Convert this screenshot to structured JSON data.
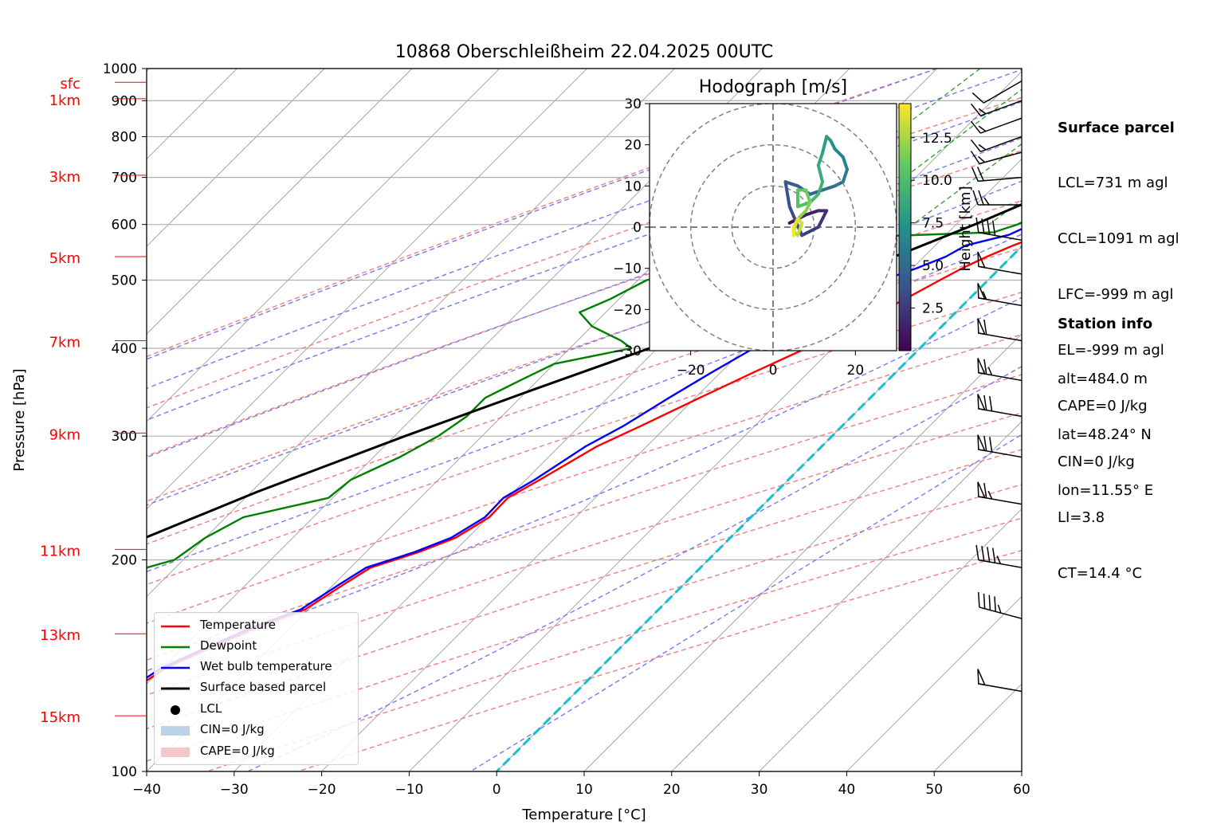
{
  "chart_data": {
    "type": "skew-t",
    "title": "10868 Oberschleißheim 22.04.2025 00UTC",
    "xlabel": "Temperature [°C]",
    "ylabel": "Pressure [hPa]",
    "xlim": [
      -40,
      60
    ],
    "ylim": [
      1000,
      100
    ],
    "x_ticks": [
      "−40",
      "−30",
      "−20",
      "−10",
      "0",
      "10",
      "20",
      "30",
      "40",
      "50",
      "60"
    ],
    "y_ticks": [
      "100",
      "200",
      "300",
      "400",
      "500",
      "600",
      "700",
      "800",
      "900",
      "1000"
    ],
    "height_labels": [
      {
        "label": "15km",
        "p": 120
      },
      {
        "label": "13km",
        "p": 157
      },
      {
        "label": "11km",
        "p": 207
      },
      {
        "label": "9km",
        "p": 303
      },
      {
        "label": "7km",
        "p": 410
      },
      {
        "label": "5km",
        "p": 540
      },
      {
        "label": "3km",
        "p": 705
      },
      {
        "label": "1km",
        "p": 906
      },
      {
        "label": "sfc",
        "p": 956
      }
    ],
    "series": [
      {
        "name": "Temperature",
        "color": "#ff0000",
        "points": [
          [
            956,
            12.9
          ],
          [
            940,
            12.0
          ],
          [
            920,
            10.8
          ],
          [
            900,
            9.5
          ],
          [
            880,
            8.3
          ],
          [
            860,
            7.7
          ],
          [
            840,
            7.4
          ],
          [
            800,
            6.5
          ],
          [
            760,
            5.7
          ],
          [
            720,
            4.8
          ],
          [
            680,
            3.3
          ],
          [
            640,
            1.7
          ],
          [
            600,
            -0.1
          ],
          [
            580,
            0.9
          ],
          [
            560,
            -1.1
          ],
          [
            540,
            -2.8
          ],
          [
            520,
            -4.3
          ],
          [
            500,
            -5.5
          ],
          [
            470,
            -7.3
          ],
          [
            440,
            -9.5
          ],
          [
            400,
            -13.0
          ],
          [
            370,
            -16.2
          ],
          [
            340,
            -19.5
          ],
          [
            310,
            -23.0
          ],
          [
            290,
            -25.7
          ],
          [
            260,
            -28.4
          ],
          [
            245,
            -30.0
          ],
          [
            230,
            -29.9
          ],
          [
            215,
            -31.4
          ],
          [
            205,
            -34.0
          ],
          [
            195,
            -37.7
          ],
          [
            185,
            -38.8
          ],
          [
            170,
            -40.4
          ],
          [
            160,
            -44.0
          ],
          [
            150,
            -46.8
          ],
          [
            140,
            -49.7
          ],
          [
            130,
            -51.0
          ],
          [
            120,
            -52.4
          ],
          [
            117,
            -51.9
          ]
        ]
      },
      {
        "name": "Dewpoint",
        "color": "#008000",
        "points": [
          [
            956,
            7.3
          ],
          [
            940,
            6.3
          ],
          [
            920,
            5.7
          ],
          [
            900,
            5.4
          ],
          [
            880,
            5.8
          ],
          [
            860,
            5.1
          ],
          [
            840,
            4.9
          ],
          [
            800,
            4.2
          ],
          [
            760,
            3.6
          ],
          [
            720,
            2.9
          ],
          [
            680,
            1.4
          ],
          [
            640,
            -0.5
          ],
          [
            600,
            -3.0
          ],
          [
            585,
            -4.8
          ],
          [
            575,
            -21.0
          ],
          [
            560,
            -22.0
          ],
          [
            540,
            -25.0
          ],
          [
            520,
            -34.0
          ],
          [
            500,
            -39.0
          ],
          [
            470,
            -41.0
          ],
          [
            450,
            -43.0
          ],
          [
            430,
            -40.0
          ],
          [
            410,
            -35.0
          ],
          [
            400,
            -33.0
          ],
          [
            380,
            -40.0
          ],
          [
            360,
            -42.0
          ],
          [
            340,
            -44.0
          ],
          [
            320,
            -44.0
          ],
          [
            300,
            -45.0
          ],
          [
            280,
            -47.0
          ],
          [
            260,
            -50.0
          ],
          [
            245,
            -50.5
          ],
          [
            230,
            -58.0
          ],
          [
            215,
            -60.0
          ],
          [
            200,
            -61.0
          ],
          [
            185,
            -68.0
          ],
          [
            170,
            -70.0
          ],
          [
            160,
            -71.5
          ],
          [
            150,
            -72.5
          ],
          [
            140,
            -76.5
          ],
          [
            130,
            -78.5
          ],
          [
            120,
            -79.0
          ]
        ]
      },
      {
        "name": "Wet bulb temperature",
        "color": "#0000ff",
        "points": [
          [
            956,
            9.4
          ],
          [
            940,
            8.6
          ],
          [
            920,
            7.9
          ],
          [
            900,
            7.1
          ],
          [
            880,
            6.6
          ],
          [
            860,
            6.1
          ],
          [
            840,
            5.8
          ],
          [
            800,
            5.3
          ],
          [
            760,
            4.9
          ],
          [
            720,
            4.1
          ],
          [
            680,
            2.6
          ],
          [
            640,
            0.7
          ],
          [
            600,
            -1.4
          ],
          [
            580,
            -2.8
          ],
          [
            560,
            -6.5
          ],
          [
            540,
            -7.5
          ],
          [
            520,
            -9.5
          ],
          [
            500,
            -12.0
          ],
          [
            470,
            -14.0
          ],
          [
            440,
            -15.5
          ],
          [
            400,
            -19.0
          ],
          [
            370,
            -21.0
          ],
          [
            340,
            -23.0
          ],
          [
            310,
            -25.0
          ],
          [
            290,
            -27.0
          ],
          [
            260,
            -29.0
          ],
          [
            245,
            -30.5
          ],
          [
            230,
            -30.4
          ],
          [
            215,
            -31.9
          ],
          [
            205,
            -34.5
          ],
          [
            195,
            -38.2
          ],
          [
            185,
            -39.3
          ],
          [
            170,
            -40.9
          ],
          [
            160,
            -44.5
          ],
          [
            150,
            -47.3
          ],
          [
            140,
            -50.2
          ],
          [
            130,
            -51.5
          ],
          [
            120,
            -52.9
          ],
          [
            117,
            -52.4
          ]
        ]
      },
      {
        "name": "Surface based parcel",
        "color": "#000000",
        "points": [
          [
            956,
            13.0
          ],
          [
            930,
            10.8
          ],
          [
            910,
            9.0
          ],
          [
            880,
            7.9
          ],
          [
            840,
            6.3
          ],
          [
            800,
            4.4
          ],
          [
            750,
            1.9
          ],
          [
            700,
            -0.9
          ],
          [
            650,
            -4.1
          ],
          [
            600,
            -7.9
          ],
          [
            550,
            -12.4
          ],
          [
            500,
            -17.6
          ],
          [
            450,
            -23.7
          ],
          [
            400,
            -30.9
          ],
          [
            350,
            -39.3
          ],
          [
            300,
            -48.8
          ],
          [
            250,
            -59.3
          ],
          [
            200,
            -70.5
          ],
          [
            175,
            -76.5
          ],
          [
            150,
            -82.6
          ],
          [
            135,
            -86.3
          ]
        ]
      }
    ],
    "lcl": {
      "p": 880,
      "t": 8.4
    },
    "hodograph": {
      "title": "Hodograph [m/s]",
      "xlim": [
        -30,
        30
      ],
      "ylim": [
        -30,
        30
      ],
      "x_ticks": [
        "−20",
        "0",
        "20"
      ],
      "y_ticks": [
        "30",
        "20",
        "10",
        "0",
        "−10",
        "−20",
        "−30"
      ],
      "colorbar_label": "Height [km]",
      "colorbar_ticks": [
        "2.5",
        "5.0",
        "7.5",
        "10.0",
        "12.5"
      ],
      "colormap": [
        "#440154",
        "#3b528b",
        "#21918c",
        "#5ec962",
        "#fde725"
      ],
      "points": [
        [
          4,
          1,
          0.3
        ],
        [
          8,
          3,
          0.8
        ],
        [
          11,
          4,
          1.3
        ],
        [
          13,
          4,
          1.8
        ],
        [
          11,
          0,
          2.3
        ],
        [
          7,
          -2,
          2.7
        ],
        [
          4,
          5,
          3.2
        ],
        [
          3,
          11,
          3.6
        ],
        [
          6,
          10,
          4.0
        ],
        [
          9,
          8,
          4.4
        ],
        [
          12,
          9,
          4.8
        ],
        [
          15,
          10,
          5.2
        ],
        [
          17,
          11,
          5.6
        ],
        [
          18,
          14,
          6.0
        ],
        [
          17,
          17,
          6.4
        ],
        [
          15,
          19,
          6.8
        ],
        [
          14,
          21,
          7.2
        ],
        [
          13,
          22,
          7.6
        ],
        [
          12,
          18,
          8.0
        ],
        [
          11,
          15,
          8.4
        ],
        [
          12,
          11,
          8.8
        ],
        [
          11,
          8,
          9.2
        ],
        [
          9,
          6,
          9.6
        ],
        [
          6,
          5,
          10.0
        ],
        [
          6,
          9,
          10.4
        ],
        [
          8,
          9,
          10.8
        ],
        [
          9,
          6,
          11.2
        ],
        [
          8,
          4,
          11.6
        ],
        [
          6,
          2,
          12.0
        ],
        [
          5,
          -1,
          12.4
        ],
        [
          6,
          -2,
          12.8
        ],
        [
          7,
          1,
          13.2
        ],
        [
          6,
          2,
          13.6
        ],
        [
          5,
          0,
          14.0
        ],
        [
          5,
          -2,
          14.4
        ]
      ]
    },
    "wind_barbs": [
      {
        "p": 130,
        "spd": 50,
        "dir": 280
      },
      {
        "p": 165,
        "spd": 45,
        "dir": 285
      },
      {
        "p": 195,
        "spd": 45,
        "dir": 280
      },
      {
        "p": 240,
        "spd": 65,
        "dir": 280
      },
      {
        "p": 280,
        "spd": 70,
        "dir": 280
      },
      {
        "p": 320,
        "spd": 70,
        "dir": 280
      },
      {
        "p": 360,
        "spd": 65,
        "dir": 280
      },
      {
        "p": 410,
        "spd": 60,
        "dir": 280
      },
      {
        "p": 460,
        "spd": 55,
        "dir": 280
      },
      {
        "p": 510,
        "spd": 50,
        "dir": 280
      },
      {
        "p": 570,
        "spd": 40,
        "dir": 280
      },
      {
        "p": 640,
        "spd": 25,
        "dir": 270
      },
      {
        "p": 700,
        "spd": 20,
        "dir": 265
      },
      {
        "p": 760,
        "spd": 15,
        "dir": 255
      },
      {
        "p": 800,
        "spd": 15,
        "dir": 250
      },
      {
        "p": 850,
        "spd": 15,
        "dir": 250
      },
      {
        "p": 900,
        "spd": 15,
        "dir": 250
      },
      {
        "p": 960,
        "spd": 10,
        "dir": 240
      }
    ],
    "grid": true,
    "legend": "lower-left"
  },
  "legend": [
    {
      "label": "Temperature",
      "color": "#ff0000",
      "kind": "line"
    },
    {
      "label": "Dewpoint",
      "color": "#008000",
      "kind": "line"
    },
    {
      "label": "Wet bulb temperature",
      "color": "#0000ff",
      "kind": "line"
    },
    {
      "label": "Surface based parcel",
      "color": "#000000",
      "kind": "line"
    },
    {
      "label": "LCL",
      "color": "#000000",
      "kind": "dot"
    },
    {
      "label": "CIN=0 J/kg",
      "color": "#bcd4e6",
      "kind": "patch"
    },
    {
      "label": "CAPE=0 J/kg",
      "color": "#f5c6c6",
      "kind": "patch"
    }
  ],
  "info": {
    "surface_title": "Surface parcel",
    "surface_lines": [
      "LCL=731 m agl",
      "CCL=1091 m agl",
      "LFC=-999 m agl",
      "EL=-999 m agl",
      "CAPE=0 J/kg",
      "CIN=0 J/kg",
      "LI=3.8",
      "CT=14.4 °C"
    ],
    "station_title": "Station info",
    "station_lines": [
      "alt=484.0 m",
      "lat=48.24° N",
      "lon=11.55° E"
    ]
  }
}
